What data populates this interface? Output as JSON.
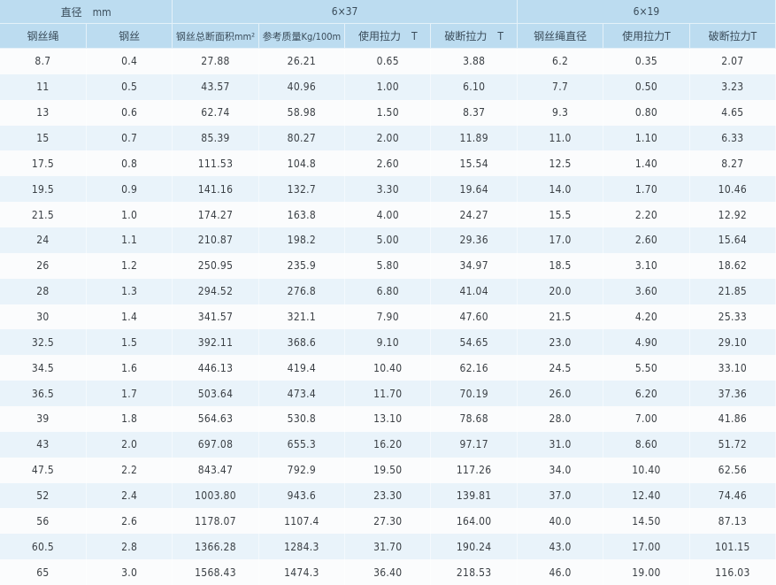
{
  "header": {
    "group_diameter": "直径　mm",
    "group_6x37": "6×37",
    "group_6x19": "6×19",
    "columns": [
      "钢丝绳",
      "钢丝",
      "钢丝总断面积mm²",
      "参考质量Kg/100m",
      "使用拉力　T",
      "破断拉力　T",
      "钢丝绳直径",
      "使用拉力T",
      "破断拉力T"
    ]
  },
  "colors": {
    "header_bg": "#bcdcf0",
    "stripe_bg": "#e9f3fa"
  },
  "rows": [
    [
      "8.7",
      "0.4",
      "27.88",
      "26.21",
      "0.65",
      "3.88",
      "6.2",
      "0.35",
      "2.07"
    ],
    [
      "11",
      "0.5",
      "43.57",
      "40.96",
      "1.00",
      "6.10",
      "7.7",
      "0.50",
      "3.23"
    ],
    [
      "13",
      "0.6",
      "62.74",
      "58.98",
      "1.50",
      "8.37",
      "9.3",
      "0.80",
      "4.65"
    ],
    [
      "15",
      "0.7",
      "85.39",
      "80.27",
      "2.00",
      "11.89",
      "11.0",
      "1.10",
      "6.33"
    ],
    [
      "17.5",
      "0.8",
      "111.53",
      "104.8",
      "2.60",
      "15.54",
      "12.5",
      "1.40",
      "8.27"
    ],
    [
      "19.5",
      "0.9",
      "141.16",
      "132.7",
      "3.30",
      "19.64",
      "14.0",
      "1.70",
      "10.46"
    ],
    [
      "21.5",
      "1.0",
      "174.27",
      "163.8",
      "4.00",
      "24.27",
      "15.5",
      "2.20",
      "12.92"
    ],
    [
      "24",
      "1.1",
      "210.87",
      "198.2",
      "5.00",
      "29.36",
      "17.0",
      "2.60",
      "15.64"
    ],
    [
      "26",
      "1.2",
      "250.95",
      "235.9",
      "5.80",
      "34.97",
      "18.5",
      "3.10",
      "18.62"
    ],
    [
      "28",
      "1.3",
      "294.52",
      "276.8",
      "6.80",
      "41.04",
      "20.0",
      "3.60",
      "21.85"
    ],
    [
      "30",
      "1.4",
      "341.57",
      "321.1",
      "7.90",
      "47.60",
      "21.5",
      "4.20",
      "25.33"
    ],
    [
      "32.5",
      "1.5",
      "392.11",
      "368.6",
      "9.10",
      "54.65",
      "23.0",
      "4.90",
      "29.10"
    ],
    [
      "34.5",
      "1.6",
      "446.13",
      "419.4",
      "10.40",
      "62.16",
      "24.5",
      "5.50",
      "33.10"
    ],
    [
      "36.5",
      "1.7",
      "503.64",
      "473.4",
      "11.70",
      "70.19",
      "26.0",
      "6.20",
      "37.36"
    ],
    [
      "39",
      "1.8",
      "564.63",
      "530.8",
      "13.10",
      "78.68",
      "28.0",
      "7.00",
      "41.86"
    ],
    [
      "43",
      "2.0",
      "697.08",
      "655.3",
      "16.20",
      "97.17",
      "31.0",
      "8.60",
      "51.72"
    ],
    [
      "47.5",
      "2.2",
      "843.47",
      "792.9",
      "19.50",
      "117.26",
      "34.0",
      "10.40",
      "62.56"
    ],
    [
      "52",
      "2.4",
      "1003.80",
      "943.6",
      "23.30",
      "139.81",
      "37.0",
      "12.40",
      "74.46"
    ],
    [
      "56",
      "2.6",
      "1178.07",
      "1107.4",
      "27.30",
      "164.00",
      "40.0",
      "14.50",
      "87.13"
    ],
    [
      "60.5",
      "2.8",
      "1366.28",
      "1284.3",
      "31.70",
      "190.24",
      "43.0",
      "17.00",
      "101.15"
    ],
    [
      "65",
      "3.0",
      "1568.43",
      "1474.3",
      "36.40",
      "218.53",
      "46.0",
      "19.00",
      "116.03"
    ]
  ]
}
